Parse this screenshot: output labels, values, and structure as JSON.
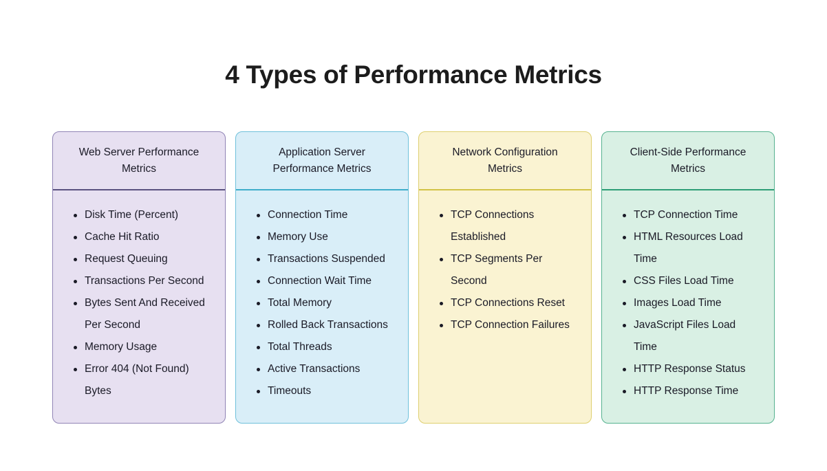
{
  "page": {
    "title": "4 Types of Performance Metrics",
    "background_color": "#ffffff",
    "title_color": "#1c1c1c"
  },
  "cards": [
    {
      "title": "Web Server Performance Metrics",
      "colors": {
        "background": "#E7E0F1",
        "border": "#9084B5",
        "divider": "#5A5280"
      },
      "items": [
        "Disk Time (Percent)",
        "Cache Hit Ratio",
        "Request Queuing",
        "Transactions Per Second",
        "Bytes Sent And Received\nPer Second",
        "Memory Usage",
        "Error 404 (Not Found)\nBytes"
      ]
    },
    {
      "title": "Application Server Performance Metrics",
      "colors": {
        "background": "#D9EEF8",
        "border": "#6FC0DA",
        "divider": "#3FAECB"
      },
      "items": [
        "Connection Time",
        "Memory Use",
        "Transactions Suspended",
        "Connection Wait Time",
        "Total Memory",
        "Rolled Back Transactions",
        "Total Threads",
        "Active Transactions",
        "Timeouts"
      ]
    },
    {
      "title": "Network Configuration Metrics",
      "colors": {
        "background": "#FAF3D2",
        "border": "#DECF6F",
        "divider": "#D2C246"
      },
      "items": [
        "TCP Connections\nEstablished",
        "TCP Segments Per\nSecond",
        "TCP Connections Reset",
        "TCP Connection Failures"
      ]
    },
    {
      "title": "Client-Side Performance Metrics",
      "colors": {
        "background": "#D9F0E4",
        "border": "#55B28F",
        "divider": "#2D9E76"
      },
      "items": [
        "TCP Connection Time",
        "HTML Resources Load\nTime",
        "CSS Files Load Time",
        "Images Load Time",
        "JavaScript Files Load\nTime",
        "HTTP Response Status",
        "HTTP Response Time"
      ]
    }
  ]
}
